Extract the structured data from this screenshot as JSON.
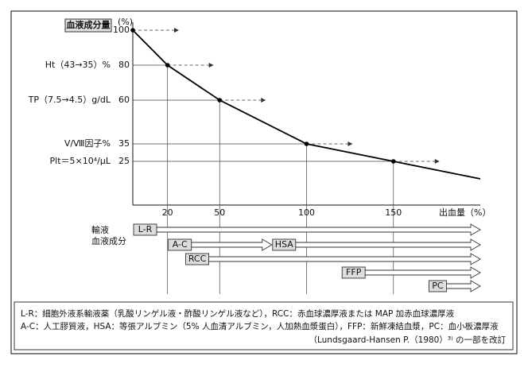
{
  "chart_data": {
    "type": "line",
    "title": "血液成分量",
    "y_unit": "(%)",
    "xlabel": "出血量（%）",
    "x": [
      0,
      20,
      50,
      100,
      150,
      200
    ],
    "series": [
      {
        "color": "#000000",
        "values": [
          100,
          80,
          60,
          35,
          25,
          15
        ]
      }
    ],
    "xlim": [
      0,
      200
    ],
    "xticks": [
      20,
      50,
      100,
      150
    ],
    "ylim": [
      0,
      100
    ],
    "yticks": [
      100,
      80,
      60,
      35,
      25
    ],
    "ytick_names": [
      null,
      "Ht（43→35）%",
      "TP（7.5→4.5）g/dL",
      "Ⅴ/Ⅷ因子%",
      "Plt＝5×10⁴/μL"
    ],
    "lower_label": [
      "輸液",
      "血液成分"
    ],
    "fluids": [
      {
        "name": "L-R",
        "start": 0,
        "end": 200
      },
      {
        "name": "A-C",
        "start": 20,
        "end": 80
      },
      {
        "name": "HSA",
        "start": 80,
        "end": 200
      },
      {
        "name": "RCC",
        "start": 30,
        "end": 200
      },
      {
        "name": "FFP",
        "start": 120,
        "end": 200
      },
      {
        "name": "PC",
        "start": 170,
        "end": 200
      }
    ],
    "notes": [
      "L-R：細胞外液系輸液薬（乳酸リンゲル液・酢酸リンゲル液など），RCC：赤血球濃厚液または MAP 加赤血球濃厚液",
      "A-C：人工膠質液，HSA：等張アルブミン（5% 人血清アルブミン，人加熱血漿蛋白），FFP：新鮮凍結血漿，PC：血小板濃厚液",
      "（Lundsgaard-Hansen P.（1980）³⁾ の一部を改訂"
    ]
  }
}
